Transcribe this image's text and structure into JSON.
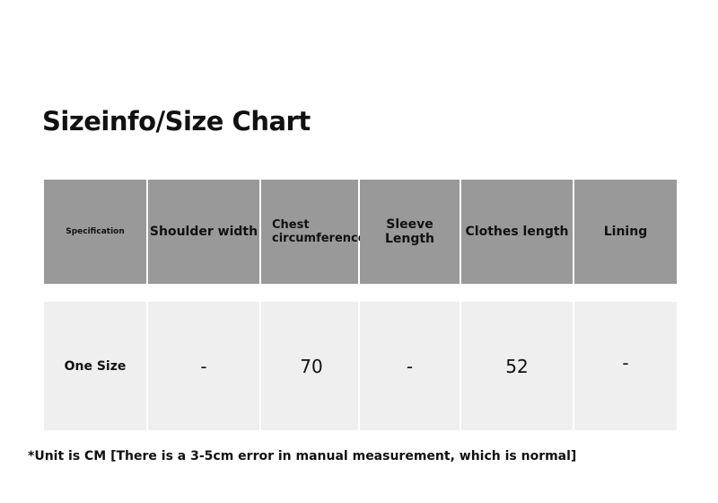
{
  "title": "Sizeinfo/Size Chart",
  "table": {
    "headers": [
      "Specification",
      "Shoulder width",
      "Chest\ncircumference",
      "Sleeve Length",
      "Clothes length",
      "Lining"
    ],
    "rows": [
      [
        "One Size",
        "-",
        "70",
        "-",
        "52",
        "-"
      ]
    ]
  },
  "colors": {
    "header_bg": "#999999",
    "row_bg": "#efefef"
  },
  "note": "*Unit is CM [There is a 3-5cm error in manual measurement, which is normal]"
}
